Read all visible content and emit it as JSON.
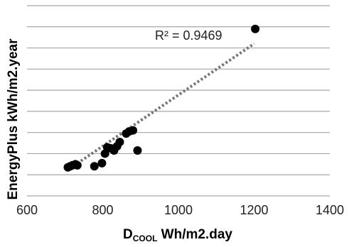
{
  "chart_data": {
    "type": "scatter",
    "title": "",
    "xlabel_main": "D",
    "xlabel_sub": "COOL",
    "xlabel_rest": " Wh/m2.day",
    "ylabel": "EnergyPlus kWh/m2.year",
    "xlim": [
      600,
      1400
    ],
    "xticks": [
      "600",
      "800",
      "1000",
      "1200",
      "1400"
    ],
    "y_gridlines": 9,
    "grid": "horizontal",
    "legend": "none",
    "series": [
      {
        "marker_color": "#000000",
        "points": [
          {
            "x": 708,
            "y": 1.35
          },
          {
            "x": 714,
            "y": 1.4
          },
          {
            "x": 720,
            "y": 1.45
          },
          {
            "x": 728,
            "y": 1.5
          },
          {
            "x": 733,
            "y": 1.45
          },
          {
            "x": 778,
            "y": 1.4
          },
          {
            "x": 798,
            "y": 1.55
          },
          {
            "x": 806,
            "y": 2.0
          },
          {
            "x": 812,
            "y": 2.3
          },
          {
            "x": 822,
            "y": 2.25
          },
          {
            "x": 830,
            "y": 2.15
          },
          {
            "x": 838,
            "y": 2.35
          },
          {
            "x": 845,
            "y": 2.55
          },
          {
            "x": 862,
            "y": 2.95
          },
          {
            "x": 870,
            "y": 3.05
          },
          {
            "x": 880,
            "y": 3.1
          },
          {
            "x": 892,
            "y": 2.15
          },
          {
            "x": 1203,
            "y": 7.9
          }
        ]
      }
    ],
    "trendline": {
      "type": "linear",
      "x_range": [
        705,
        1200
      ],
      "y_at_start": 1.2,
      "y_at_end": 7.2,
      "color": "#777777"
    },
    "annotations": [
      {
        "text": "R² = 0.9469"
      }
    ]
  }
}
